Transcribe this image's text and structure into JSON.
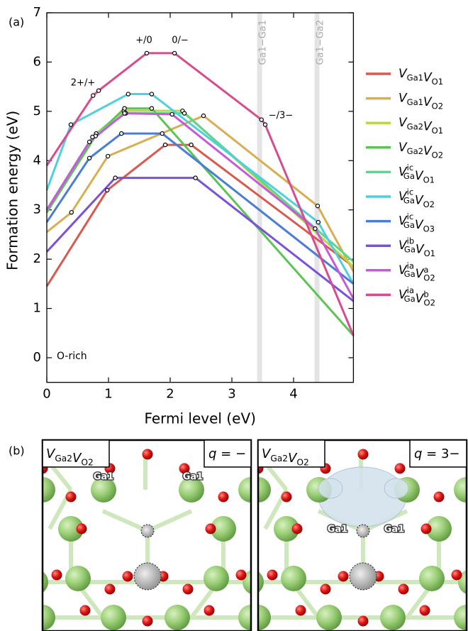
{
  "chart_data": {
    "type": "line",
    "panel_label": "(a)",
    "xlabel": "Fermi level (eV)",
    "ylabel": "Formation energy (eV)",
    "xlim": [
      0,
      4.97
    ],
    "ylim": [
      -0.5,
      7
    ],
    "xticks": [
      0,
      1,
      2,
      3,
      4
    ],
    "yticks": [
      0,
      1,
      2,
      3,
      4,
      5,
      6,
      7
    ],
    "condition": "O-rich",
    "transition_labels": [
      "2+/+",
      "+/0",
      "0/−",
      "−/3−"
    ],
    "bands": [
      {
        "label": "Ga1−Ga1",
        "x": 3.45
      },
      {
        "label": "Ga1−Ga2",
        "x": 4.38
      }
    ],
    "series": [
      {
        "name": [
          {
            "base": "V",
            "sub": "Ga1"
          },
          {
            "base": "V",
            "sub": "O1"
          }
        ],
        "color": "#d9584f",
        "x": [
          0,
          0.98,
          1.92,
          2.34,
          4.97
        ],
        "values": [
          1.45,
          3.4,
          4.32,
          4.32,
          1.85
        ]
      },
      {
        "name": [
          {
            "base": "V",
            "sub": "Ga1"
          },
          {
            "base": "V",
            "sub": "O2"
          }
        ],
        "color": "#d8ae52",
        "x": [
          0,
          0.4,
          0.99,
          2.54,
          4.39,
          4.97
        ],
        "values": [
          2.55,
          2.95,
          4.09,
          4.91,
          3.08,
          1.75
        ]
      },
      {
        "name": [
          {
            "base": "V",
            "sub": "Ga2"
          },
          {
            "base": "V",
            "sub": "O1"
          }
        ],
        "color": "#b8d84a",
        "x": [
          0,
          0.8,
          1.25,
          2.2,
          4.97
        ],
        "values": [
          2.95,
          4.55,
          5.01,
          5.01,
          1.85
        ]
      },
      {
        "name": [
          {
            "base": "V",
            "sub": "Ga2"
          },
          {
            "base": "V",
            "sub": "O2"
          }
        ],
        "color": "#5cc454",
        "x": [
          0,
          0.79,
          1.26,
          1.7,
          4.97
        ],
        "values": [
          2.95,
          4.5,
          5.06,
          5.06,
          0.45
        ]
      },
      {
        "name": [
          {
            "base": "V",
            "sub": "Ga",
            "sup": "ic"
          },
          {
            "base": "V",
            "sub": "O1"
          }
        ],
        "color": "#5cd68e",
        "x": [
          0,
          0.74,
          1.28,
          2.23,
          4.97
        ],
        "values": [
          3.0,
          4.48,
          4.96,
          4.96,
          1.95
        ]
      },
      {
        "name": [
          {
            "base": "V",
            "sub": "Ga",
            "sup": "ic"
          },
          {
            "base": "V",
            "sub": "O2"
          }
        ],
        "color": "#4fd0dc",
        "x": [
          0,
          0.39,
          1.32,
          1.7,
          4.4,
          4.97
        ],
        "values": [
          3.4,
          4.73,
          5.35,
          5.35,
          2.75,
          1.5
        ]
      },
      {
        "name": [
          {
            "base": "V",
            "sub": "Ga",
            "sup": "ic"
          },
          {
            "base": "V",
            "sub": "O3"
          }
        ],
        "color": "#4a7dd4",
        "x": [
          0,
          0.69,
          1.21,
          1.87,
          4.97
        ],
        "values": [
          2.75,
          4.05,
          4.55,
          4.55,
          1.5
        ]
      },
      {
        "name": [
          {
            "base": "V",
            "sub": "Ga",
            "sup": "ib"
          },
          {
            "base": "V",
            "sub": "O1"
          }
        ],
        "color": "#7a52d8",
        "x": [
          0,
          1.11,
          2.41,
          4.97
        ],
        "values": [
          2.15,
          3.65,
          3.65,
          1.15
        ]
      },
      {
        "name": [
          {
            "base": "V",
            "sub": "Ga",
            "sup": "ia"
          },
          {
            "base": "V",
            "sub": "O2",
            "sup": "a"
          }
        ],
        "color": "#c65ad8",
        "x": [
          0,
          0.69,
          1.26,
          2.03,
          4.35,
          4.97
        ],
        "values": [
          3.0,
          4.38,
          4.96,
          4.94,
          2.62,
          1.2
        ]
      },
      {
        "name": [
          {
            "base": "V",
            "sub": "Ga",
            "sup": "ia"
          },
          {
            "base": "V",
            "sub": "O2",
            "sup": "b"
          }
        ],
        "color": "#d84c8e",
        "x": [
          0,
          0.75,
          0.84,
          1.62,
          2.07,
          3.48,
          3.54,
          4.97
        ],
        "values": [
          3.9,
          5.32,
          5.42,
          6.18,
          6.18,
          4.83,
          4.73,
          0.45
        ]
      }
    ]
  },
  "panel_b": {
    "label": "(b)",
    "panels": [
      {
        "defect": [
          {
            "base": "V",
            "sub": "Ga2"
          },
          {
            "base": "V",
            "sub": "O2"
          }
        ],
        "charge": {
          "var": "q",
          "rest": " = −"
        },
        "atoms": [
          "Ga1",
          "Ga1"
        ]
      },
      {
        "defect": [
          {
            "base": "V",
            "sub": "Ga2"
          },
          {
            "base": "V",
            "sub": "O2"
          }
        ],
        "charge": {
          "var": "q",
          "rest": " = 3−"
        },
        "atoms": [
          "Ga1",
          "Ga1"
        ]
      }
    ]
  }
}
